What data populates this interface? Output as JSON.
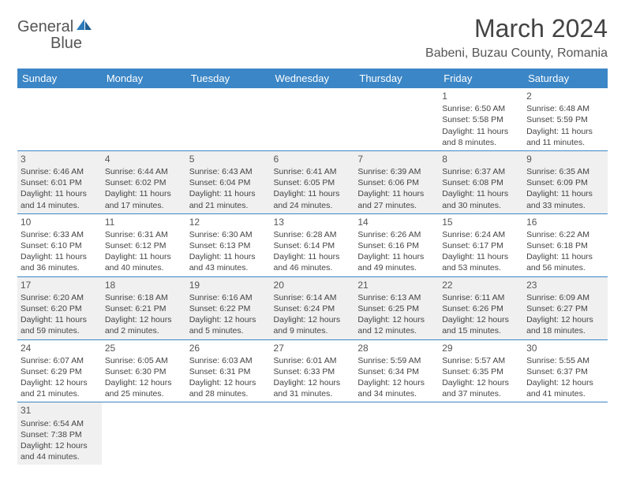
{
  "brand": {
    "name1": "General",
    "name2": "Blue"
  },
  "title": "March 2024",
  "location": "Babeni, Buzau County, Romania",
  "columns": [
    "Sunday",
    "Monday",
    "Tuesday",
    "Wednesday",
    "Thursday",
    "Friday",
    "Saturday"
  ],
  "colors": {
    "header_bg": "#3b86c6",
    "header_text": "#ffffff",
    "row_alt_bg": "#f0f0f0",
    "border": "#3b86c6",
    "text": "#444444",
    "brand_gray": "#555555",
    "brand_blue": "#2b7bbd"
  },
  "fonts": {
    "title_pt": 32,
    "location_pt": 16,
    "th_pt": 13,
    "cell_pt": 10.5,
    "daynum_pt": 12
  },
  "weeks": [
    [
      null,
      null,
      null,
      null,
      null,
      {
        "d": "1",
        "sr": "Sunrise: 6:50 AM",
        "ss": "Sunset: 5:58 PM",
        "dl1": "Daylight: 11 hours",
        "dl2": "and 8 minutes."
      },
      {
        "d": "2",
        "sr": "Sunrise: 6:48 AM",
        "ss": "Sunset: 5:59 PM",
        "dl1": "Daylight: 11 hours",
        "dl2": "and 11 minutes."
      }
    ],
    [
      {
        "d": "3",
        "sr": "Sunrise: 6:46 AM",
        "ss": "Sunset: 6:01 PM",
        "dl1": "Daylight: 11 hours",
        "dl2": "and 14 minutes."
      },
      {
        "d": "4",
        "sr": "Sunrise: 6:44 AM",
        "ss": "Sunset: 6:02 PM",
        "dl1": "Daylight: 11 hours",
        "dl2": "and 17 minutes."
      },
      {
        "d": "5",
        "sr": "Sunrise: 6:43 AM",
        "ss": "Sunset: 6:04 PM",
        "dl1": "Daylight: 11 hours",
        "dl2": "and 21 minutes."
      },
      {
        "d": "6",
        "sr": "Sunrise: 6:41 AM",
        "ss": "Sunset: 6:05 PM",
        "dl1": "Daylight: 11 hours",
        "dl2": "and 24 minutes."
      },
      {
        "d": "7",
        "sr": "Sunrise: 6:39 AM",
        "ss": "Sunset: 6:06 PM",
        "dl1": "Daylight: 11 hours",
        "dl2": "and 27 minutes."
      },
      {
        "d": "8",
        "sr": "Sunrise: 6:37 AM",
        "ss": "Sunset: 6:08 PM",
        "dl1": "Daylight: 11 hours",
        "dl2": "and 30 minutes."
      },
      {
        "d": "9",
        "sr": "Sunrise: 6:35 AM",
        "ss": "Sunset: 6:09 PM",
        "dl1": "Daylight: 11 hours",
        "dl2": "and 33 minutes."
      }
    ],
    [
      {
        "d": "10",
        "sr": "Sunrise: 6:33 AM",
        "ss": "Sunset: 6:10 PM",
        "dl1": "Daylight: 11 hours",
        "dl2": "and 36 minutes."
      },
      {
        "d": "11",
        "sr": "Sunrise: 6:31 AM",
        "ss": "Sunset: 6:12 PM",
        "dl1": "Daylight: 11 hours",
        "dl2": "and 40 minutes."
      },
      {
        "d": "12",
        "sr": "Sunrise: 6:30 AM",
        "ss": "Sunset: 6:13 PM",
        "dl1": "Daylight: 11 hours",
        "dl2": "and 43 minutes."
      },
      {
        "d": "13",
        "sr": "Sunrise: 6:28 AM",
        "ss": "Sunset: 6:14 PM",
        "dl1": "Daylight: 11 hours",
        "dl2": "and 46 minutes."
      },
      {
        "d": "14",
        "sr": "Sunrise: 6:26 AM",
        "ss": "Sunset: 6:16 PM",
        "dl1": "Daylight: 11 hours",
        "dl2": "and 49 minutes."
      },
      {
        "d": "15",
        "sr": "Sunrise: 6:24 AM",
        "ss": "Sunset: 6:17 PM",
        "dl1": "Daylight: 11 hours",
        "dl2": "and 53 minutes."
      },
      {
        "d": "16",
        "sr": "Sunrise: 6:22 AM",
        "ss": "Sunset: 6:18 PM",
        "dl1": "Daylight: 11 hours",
        "dl2": "and 56 minutes."
      }
    ],
    [
      {
        "d": "17",
        "sr": "Sunrise: 6:20 AM",
        "ss": "Sunset: 6:20 PM",
        "dl1": "Daylight: 11 hours",
        "dl2": "and 59 minutes."
      },
      {
        "d": "18",
        "sr": "Sunrise: 6:18 AM",
        "ss": "Sunset: 6:21 PM",
        "dl1": "Daylight: 12 hours",
        "dl2": "and 2 minutes."
      },
      {
        "d": "19",
        "sr": "Sunrise: 6:16 AM",
        "ss": "Sunset: 6:22 PM",
        "dl1": "Daylight: 12 hours",
        "dl2": "and 5 minutes."
      },
      {
        "d": "20",
        "sr": "Sunrise: 6:14 AM",
        "ss": "Sunset: 6:24 PM",
        "dl1": "Daylight: 12 hours",
        "dl2": "and 9 minutes."
      },
      {
        "d": "21",
        "sr": "Sunrise: 6:13 AM",
        "ss": "Sunset: 6:25 PM",
        "dl1": "Daylight: 12 hours",
        "dl2": "and 12 minutes."
      },
      {
        "d": "22",
        "sr": "Sunrise: 6:11 AM",
        "ss": "Sunset: 6:26 PM",
        "dl1": "Daylight: 12 hours",
        "dl2": "and 15 minutes."
      },
      {
        "d": "23",
        "sr": "Sunrise: 6:09 AM",
        "ss": "Sunset: 6:27 PM",
        "dl1": "Daylight: 12 hours",
        "dl2": "and 18 minutes."
      }
    ],
    [
      {
        "d": "24",
        "sr": "Sunrise: 6:07 AM",
        "ss": "Sunset: 6:29 PM",
        "dl1": "Daylight: 12 hours",
        "dl2": "and 21 minutes."
      },
      {
        "d": "25",
        "sr": "Sunrise: 6:05 AM",
        "ss": "Sunset: 6:30 PM",
        "dl1": "Daylight: 12 hours",
        "dl2": "and 25 minutes."
      },
      {
        "d": "26",
        "sr": "Sunrise: 6:03 AM",
        "ss": "Sunset: 6:31 PM",
        "dl1": "Daylight: 12 hours",
        "dl2": "and 28 minutes."
      },
      {
        "d": "27",
        "sr": "Sunrise: 6:01 AM",
        "ss": "Sunset: 6:33 PM",
        "dl1": "Daylight: 12 hours",
        "dl2": "and 31 minutes."
      },
      {
        "d": "28",
        "sr": "Sunrise: 5:59 AM",
        "ss": "Sunset: 6:34 PM",
        "dl1": "Daylight: 12 hours",
        "dl2": "and 34 minutes."
      },
      {
        "d": "29",
        "sr": "Sunrise: 5:57 AM",
        "ss": "Sunset: 6:35 PM",
        "dl1": "Daylight: 12 hours",
        "dl2": "and 37 minutes."
      },
      {
        "d": "30",
        "sr": "Sunrise: 5:55 AM",
        "ss": "Sunset: 6:37 PM",
        "dl1": "Daylight: 12 hours",
        "dl2": "and 41 minutes."
      }
    ],
    [
      {
        "d": "31",
        "sr": "Sunrise: 6:54 AM",
        "ss": "Sunset: 7:38 PM",
        "dl1": "Daylight: 12 hours",
        "dl2": "and 44 minutes."
      },
      null,
      null,
      null,
      null,
      null,
      null
    ]
  ]
}
